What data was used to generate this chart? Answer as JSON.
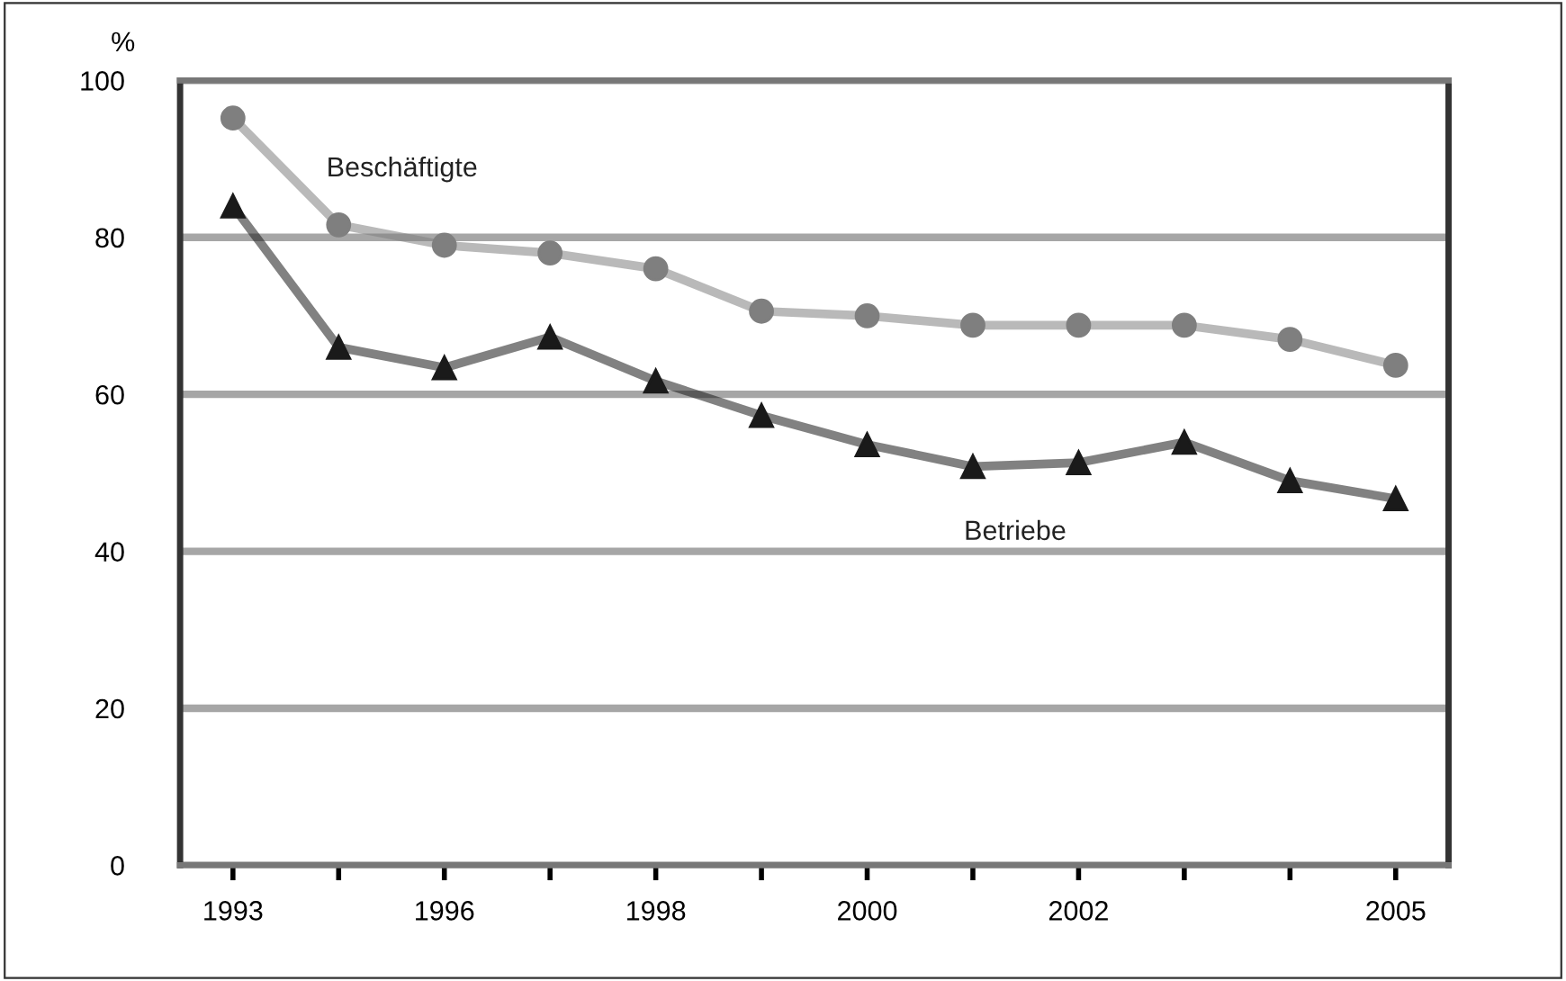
{
  "chart_data": {
    "type": "line",
    "ylabel": "%",
    "categories": [
      "1993",
      null,
      "1996",
      null,
      "1998",
      null,
      "2000",
      null,
      "2002",
      null,
      null,
      "2005"
    ],
    "series": [
      {
        "name": "Beschäftigte",
        "color": "#7f7f7f",
        "marker": "circle",
        "values": [
          95.2,
          81.6,
          79,
          78,
          76,
          70.6,
          70,
          68.8,
          68.8,
          68.8,
          67,
          63.7
        ]
      },
      {
        "name": "Betriebe",
        "color": "#1a1a1a",
        "marker": "triangle",
        "values": [
          84,
          66,
          63.4,
          67.3,
          61.7,
          57.3,
          53.6,
          50.8,
          51.3,
          53.9,
          49,
          46.7
        ]
      }
    ],
    "ylim": [
      0,
      100
    ],
    "yticks": [
      0,
      20,
      40,
      60,
      80,
      100
    ],
    "grid": "y",
    "legend": false,
    "line_style": "solid"
  }
}
